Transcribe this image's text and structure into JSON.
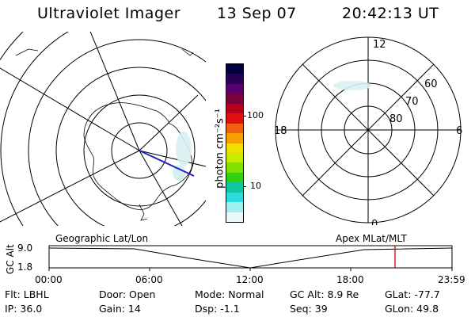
{
  "header": {
    "instrument": "Ultraviolet Imager",
    "date": "13 Sep 07",
    "time": "20:42:13 UT"
  },
  "colorbar": {
    "unit_label": "photon cm⁻²s⁻¹",
    "ticks": [
      "100",
      "10"
    ],
    "colors": [
      "#000040",
      "#2a0050",
      "#5a0070",
      "#7a0040",
      "#b80018",
      "#e01010",
      "#f06010",
      "#f8a000",
      "#f0e000",
      "#c8ec00",
      "#80e000",
      "#30d010",
      "#10c8a0",
      "#30d8e0",
      "#a0eef0",
      "#e8f8f8"
    ]
  },
  "left_map": {
    "label": "Geographic Lat/Lon"
  },
  "right_map": {
    "label": "Apex MLat/MLT",
    "mlt_labels": {
      "top": "12",
      "left": "18",
      "right": "6",
      "bottom": "0"
    },
    "lat_labels": [
      "60",
      "70",
      "80"
    ]
  },
  "timeline": {
    "axis_label": "GC Alt",
    "y_ticks": [
      "9.0",
      "1.8"
    ],
    "x_ticks": [
      "00:00",
      "06:00",
      "12:00",
      "18:00",
      "23:59"
    ],
    "marker_color": "#cc0000"
  },
  "footer": {
    "flt": "Flt: LBHL",
    "ip": "IP: 36.0",
    "door": "Door: Open",
    "gain": "Gain: 14",
    "mode": "Mode: Normal",
    "dsp": "Dsp:    -1.1",
    "gcalt": "GC Alt: 8.9 Re",
    "seq": "Seq: 39",
    "glat": "GLat: -77.7",
    "glon": "GLon:  49.8"
  }
}
